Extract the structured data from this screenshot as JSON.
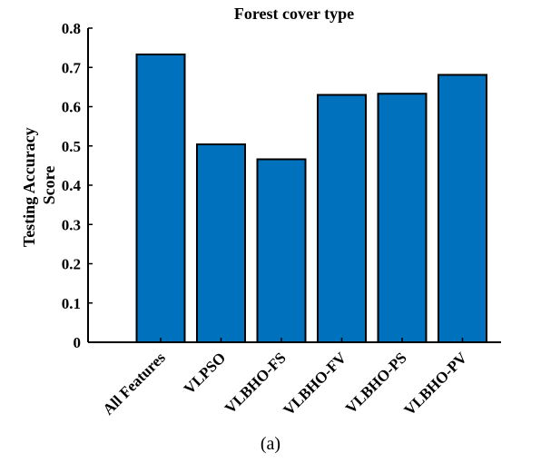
{
  "chart_data": {
    "type": "bar",
    "title": "Forest cover type",
    "ylabel": "Testing Accuracy Score",
    "ylabel_lines": [
      "Testing Accuracy",
      "Score"
    ],
    "xlabel": "",
    "categories": [
      "All Features",
      "VLPSO",
      "VLBHO-FS",
      "VLBHO-FV",
      "VLBHO-PS",
      "VLBHO-PV"
    ],
    "values": [
      0.733,
      0.504,
      0.466,
      0.63,
      0.633,
      0.681
    ],
    "ylim": [
      0,
      0.8
    ],
    "yticks": [
      0,
      0.1,
      0.2,
      0.3,
      0.4,
      0.5,
      0.6,
      0.7,
      0.8
    ],
    "ytick_labels": [
      "0",
      "0.1",
      "0.2",
      "0.3",
      "0.4",
      "0.5",
      "0.6",
      "0.7",
      "0.8"
    ],
    "grid": false,
    "bar_color": "#0072BD",
    "edge_color": "#000000"
  },
  "caption": "(a)"
}
